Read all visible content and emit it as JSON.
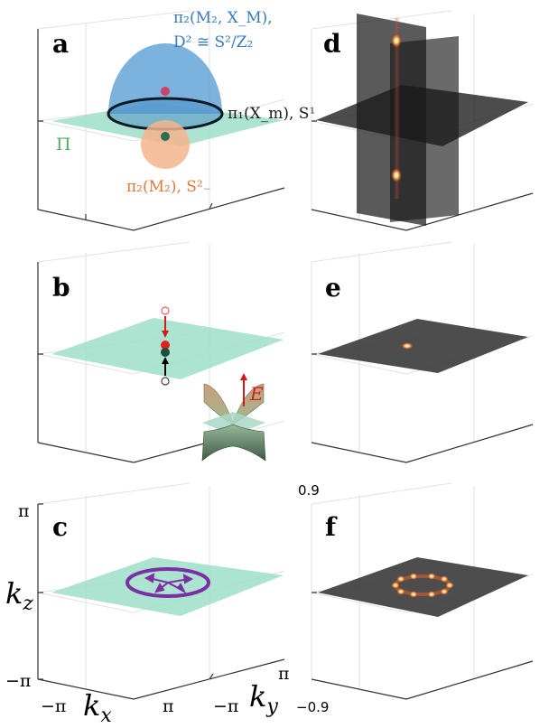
{
  "panels": {
    "a": {
      "letter": "a"
    },
    "b": {
      "letter": "b"
    },
    "c": {
      "letter": "c"
    },
    "d": {
      "letter": "d"
    },
    "e": {
      "letter": "e"
    },
    "f": {
      "letter": "f"
    }
  },
  "annotations": {
    "pi2_MX_line1": "π₂(M₂, X_M),",
    "pi2_MX_line2": "D² ≅ S²/Z₂",
    "pi1_Xm": "π₁(X_m), S¹",
    "Pi": "Π",
    "pi2_M2": "π₂(M₂), S²₋",
    "E": "E"
  },
  "axes": {
    "kz_label": "k_z",
    "kx_label": "k_x",
    "ky_label": "k_y",
    "kz_max": "π",
    "kz_min": "−π",
    "kx_min": "−π",
    "kx_max": "π",
    "ky_min": "−π",
    "ky_max": "π"
  },
  "colorbar": {
    "max": "0.9",
    "min": "−0.9"
  },
  "colors": {
    "plane_teal": "#9fdfc9",
    "hemisphere_blue": "#5a9fd6",
    "sphere_orange": "#f4b48c",
    "ring_purple": "#7a2fa3",
    "dark_plane": "#3a3a3a",
    "glow": "#ffb347"
  }
}
